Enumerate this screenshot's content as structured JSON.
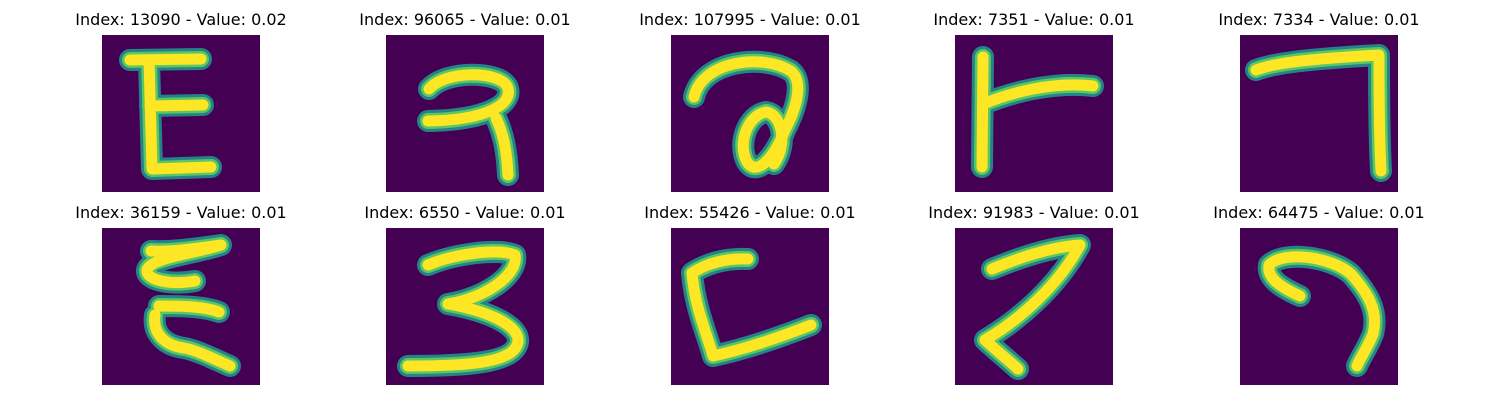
{
  "panels": [
    {
      "title": "Index: 13090 - Value: 0.02",
      "glyph": "e-like",
      "colormap": "viridis"
    },
    {
      "title": "Index: 96065 - Value: 0.01",
      "glyph": "hook-3",
      "colormap": "viridis"
    },
    {
      "title": "Index: 107995 - Value: 0.01",
      "glyph": "loop-a",
      "colormap": "viridis"
    },
    {
      "title": "Index: 7351 - Value: 0.01",
      "glyph": "t-bar",
      "colormap": "viridis"
    },
    {
      "title": "Index: 7334 - Value: 0.01",
      "glyph": "seven-corner",
      "colormap": "viridis"
    },
    {
      "title": "Index: 36159 - Value: 0.01",
      "glyph": "e-scribble",
      "colormap": "viridis"
    },
    {
      "title": "Index: 6550 - Value: 0.01",
      "glyph": "three",
      "colormap": "viridis"
    },
    {
      "title": "Index: 55426 - Value: 0.01",
      "glyph": "l-corner",
      "colormap": "viridis"
    },
    {
      "title": "Index: 91983 - Value: 0.01",
      "glyph": "zigzag-7",
      "colormap": "viridis"
    },
    {
      "title": "Index: 64475 - Value: 0.01",
      "glyph": "hook-right",
      "colormap": "viridis"
    }
  ]
}
